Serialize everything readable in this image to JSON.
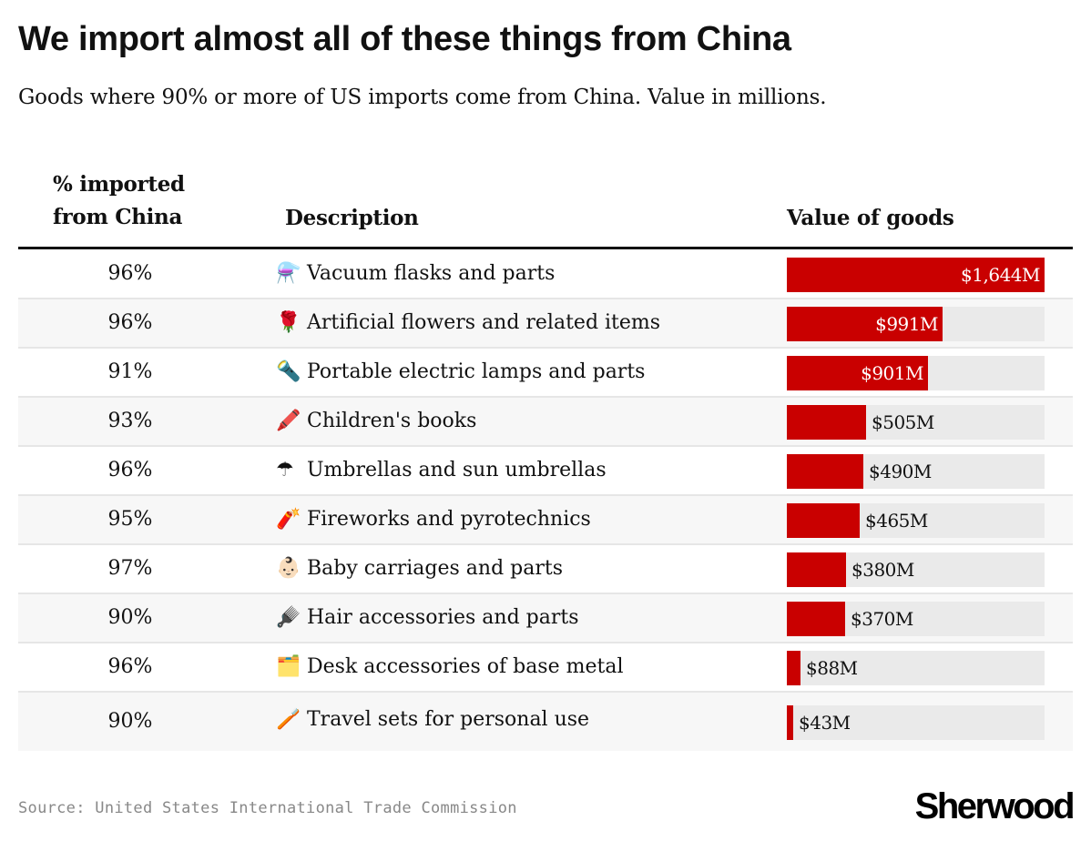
{
  "header": {
    "title": "We import almost all of these things from China",
    "subtitle": "Goods where 90% or more of US imports come from China. Value in millions."
  },
  "columns": {
    "pct": "% imported from China",
    "pct_line1": "% imported",
    "pct_line2": "from China",
    "description": "Description",
    "value": "Value of goods"
  },
  "footer": {
    "source": "Source: United States International Trade Commission",
    "brand": "Sherwood"
  },
  "colors": {
    "bar": "#c90000",
    "track": "#eaeaea",
    "row_alt": "#f7f7f7"
  },
  "chart_data": {
    "type": "table",
    "title": "We import almost all of these things from China",
    "subtitle": "Goods where 90% or more of US imports come from China. Value in millions.",
    "columns": [
      "% imported from China",
      "Description",
      "Value of goods"
    ],
    "value_unit": "millions USD",
    "value_max": 1644,
    "rows": [
      {
        "pct": "96%",
        "icon": "flask-icon",
        "emoji": "⚗️",
        "description": "Vacuum flasks and parts",
        "value": 1644,
        "label": "$1,644M"
      },
      {
        "pct": "96%",
        "icon": "rose-icon",
        "emoji": "🌹",
        "description": "Artificial flowers and related items",
        "value": 991,
        "label": "$991M"
      },
      {
        "pct": "91%",
        "icon": "flashlight-icon",
        "emoji": "🔦",
        "description": "Portable electric lamps and parts",
        "value": 901,
        "label": "$901M"
      },
      {
        "pct": "93%",
        "icon": "crayon-icon",
        "emoji": "🖍️",
        "description": "Children's books",
        "value": 505,
        "label": "$505M"
      },
      {
        "pct": "96%",
        "icon": "umbrella-icon",
        "emoji": "☂",
        "description": "Umbrellas and sun umbrellas",
        "value": 490,
        "label": "$490M"
      },
      {
        "pct": "95%",
        "icon": "firecracker-icon",
        "emoji": "🧨",
        "description": "Fireworks and pyrotechnics",
        "value": 465,
        "label": "$465M"
      },
      {
        "pct": "97%",
        "icon": "baby-icon",
        "emoji": "👶🏻",
        "description": "Baby carriages and parts",
        "value": 380,
        "label": "$380M"
      },
      {
        "pct": "90%",
        "icon": "hair-pick-icon",
        "emoji": "🪮",
        "description": "Hair accessories and parts",
        "value": 370,
        "label": "$370M"
      },
      {
        "pct": "96%",
        "icon": "folder-icon",
        "emoji": "🗂️",
        "description": "Desk accessories of base metal",
        "value": 88,
        "label": "$88M"
      },
      {
        "pct": "90%",
        "icon": "toothbrush-icon",
        "emoji": "🪥",
        "description": "Travel sets for personal use",
        "value": 43,
        "label": "$43M"
      }
    ]
  }
}
